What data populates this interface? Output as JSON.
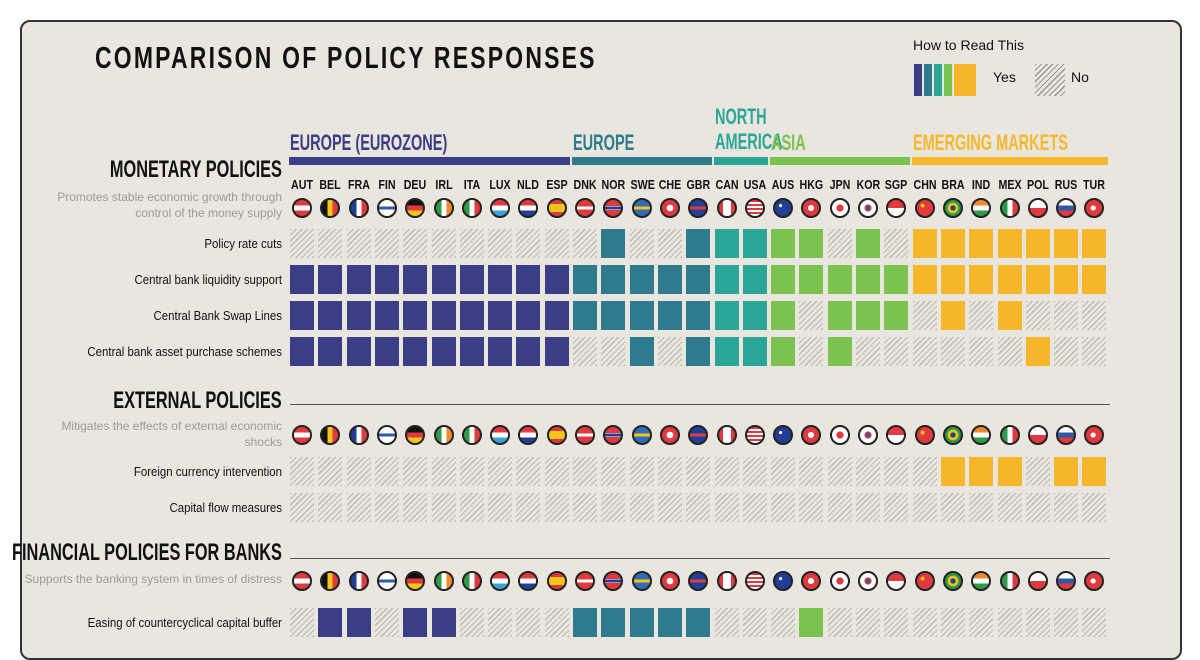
{
  "title": "COMPARISON OF POLICY RESPONSES",
  "legend": {
    "title": "How to Read This",
    "yes_label": "Yes",
    "no_label": "No",
    "yes_colors": [
      "#3b3e85",
      "#2e7b8e",
      "#2aa597",
      "#7cc24e",
      "#f6b82a"
    ]
  },
  "regions": [
    {
      "name": "EUROPE (EUROZONE)",
      "color": "#3b3e85"
    },
    {
      "name": "EUROPE",
      "color": "#2e7b8e"
    },
    {
      "name": "NORTH AMERICA",
      "color": "#2aa597"
    },
    {
      "name": "ASIA",
      "color": "#7cc24e"
    },
    {
      "name": "EMERGING MARKETS",
      "color": "#f6b82a"
    }
  ],
  "countries": [
    {
      "code": "AUT",
      "region": 0,
      "flag": "austria-flag"
    },
    {
      "code": "BEL",
      "region": 0,
      "flag": "belgium-flag"
    },
    {
      "code": "FRA",
      "region": 0,
      "flag": "france-flag"
    },
    {
      "code": "FIN",
      "region": 0,
      "flag": "finland-flag"
    },
    {
      "code": "DEU",
      "region": 0,
      "flag": "germany-flag"
    },
    {
      "code": "IRL",
      "region": 0,
      "flag": "ireland-flag"
    },
    {
      "code": "ITA",
      "region": 0,
      "flag": "italy-flag"
    },
    {
      "code": "LUX",
      "region": 0,
      "flag": "luxembourg-flag"
    },
    {
      "code": "NLD",
      "region": 0,
      "flag": "netherlands-flag"
    },
    {
      "code": "ESP",
      "region": 0,
      "flag": "spain-flag"
    },
    {
      "code": "DNK",
      "region": 1,
      "flag": "denmark-flag"
    },
    {
      "code": "NOR",
      "region": 1,
      "flag": "norway-flag"
    },
    {
      "code": "SWE",
      "region": 1,
      "flag": "sweden-flag"
    },
    {
      "code": "CHE",
      "region": 1,
      "flag": "switzerland-flag"
    },
    {
      "code": "GBR",
      "region": 1,
      "flag": "uk-flag"
    },
    {
      "code": "CAN",
      "region": 2,
      "flag": "canada-flag"
    },
    {
      "code": "USA",
      "region": 2,
      "flag": "usa-flag"
    },
    {
      "code": "AUS",
      "region": 3,
      "flag": "australia-flag"
    },
    {
      "code": "HKG",
      "region": 3,
      "flag": "hong-kong-flag"
    },
    {
      "code": "JPN",
      "region": 3,
      "flag": "japan-flag"
    },
    {
      "code": "KOR",
      "region": 3,
      "flag": "korea-flag"
    },
    {
      "code": "SGP",
      "region": 3,
      "flag": "singapore-flag"
    },
    {
      "code": "CHN",
      "region": 4,
      "flag": "china-flag"
    },
    {
      "code": "BRA",
      "region": 4,
      "flag": "brazil-flag"
    },
    {
      "code": "IND",
      "region": 4,
      "flag": "india-flag"
    },
    {
      "code": "MEX",
      "region": 4,
      "flag": "mexico-flag"
    },
    {
      "code": "POL",
      "region": 4,
      "flag": "poland-flag"
    },
    {
      "code": "RUS",
      "region": 4,
      "flag": "russia-flag"
    },
    {
      "code": "TUR",
      "region": 4,
      "flag": "turkey-flag"
    }
  ],
  "chart_data": {
    "type": "table",
    "title": "COMPARISON OF POLICY RESPONSES",
    "value_legend": {
      "1": "Yes",
      "0": "No"
    },
    "sections": [
      {
        "title": "MONETARY POLICIES",
        "description": "Promotes stable economic growth through control of the money supply",
        "rows": [
          {
            "label": "Policy rate cuts",
            "values": [
              0,
              0,
              0,
              0,
              0,
              0,
              0,
              0,
              0,
              0,
              0,
              1,
              0,
              0,
              1,
              1,
              1,
              1,
              1,
              0,
              1,
              0,
              1,
              1,
              1,
              1,
              1,
              1,
              1
            ]
          },
          {
            "label": "Central bank liquidity support",
            "values": [
              1,
              1,
              1,
              1,
              1,
              1,
              1,
              1,
              1,
              1,
              1,
              1,
              1,
              1,
              1,
              1,
              1,
              1,
              1,
              1,
              1,
              1,
              1,
              1,
              1,
              1,
              1,
              1,
              1
            ]
          },
          {
            "label": "Central Bank Swap Lines",
            "values": [
              1,
              1,
              1,
              1,
              1,
              1,
              1,
              1,
              1,
              1,
              1,
              1,
              1,
              1,
              1,
              1,
              1,
              1,
              0,
              1,
              1,
              1,
              0,
              1,
              0,
              1,
              0,
              0,
              0
            ]
          },
          {
            "label": "Central bank asset purchase schemes",
            "values": [
              1,
              1,
              1,
              1,
              1,
              1,
              1,
              1,
              1,
              1,
              0,
              0,
              1,
              0,
              1,
              1,
              1,
              1,
              0,
              1,
              0,
              0,
              0,
              0,
              0,
              0,
              1,
              0,
              0
            ]
          }
        ]
      },
      {
        "title": "EXTERNAL POLICIES",
        "description": "Mitigates the effects of external economic shocks",
        "rows": [
          {
            "label": "Foreign currency intervention",
            "values": [
              0,
              0,
              0,
              0,
              0,
              0,
              0,
              0,
              0,
              0,
              0,
              0,
              0,
              0,
              0,
              0,
              0,
              0,
              0,
              0,
              0,
              0,
              0,
              1,
              1,
              1,
              0,
              1,
              1
            ]
          },
          {
            "label": "Capital flow measures",
            "values": [
              0,
              0,
              0,
              0,
              0,
              0,
              0,
              0,
              0,
              0,
              0,
              0,
              0,
              0,
              0,
              0,
              0,
              0,
              0,
              0,
              0,
              0,
              0,
              0,
              0,
              0,
              0,
              0,
              0
            ]
          }
        ]
      },
      {
        "title": "FINANCIAL POLICIES FOR BANKS",
        "description": "Supports the banking system in times of distress",
        "rows": [
          {
            "label": "Easing of countercyclical capital buffer",
            "values": [
              0,
              1,
              1,
              0,
              1,
              1,
              0,
              0,
              0,
              0,
              1,
              1,
              1,
              1,
              1,
              0,
              0,
              0,
              1,
              0,
              0,
              0,
              0,
              0,
              0,
              0,
              0,
              0,
              0
            ]
          }
        ]
      }
    ]
  }
}
